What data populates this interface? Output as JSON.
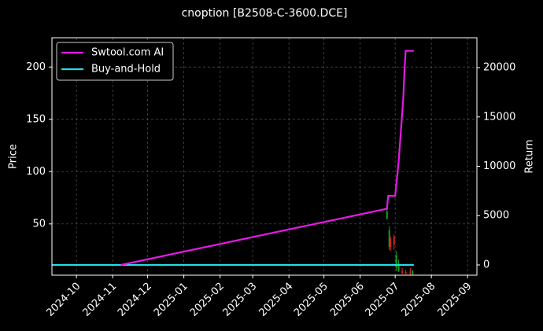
{
  "chart_data": {
    "type": "line",
    "title": "cnoption [B2508-C-3600.DCE]",
    "ylabel": "Price",
    "y2label": "Return",
    "xlim": [
      "2024-09-10",
      "2025-09-09"
    ],
    "xticks": [
      "2024-10",
      "2024-11",
      "2024-12",
      "2025-01",
      "2025-02",
      "2025-03",
      "2025-04",
      "2025-05",
      "2025-06",
      "2025-07",
      "2025-08",
      "2025-09"
    ],
    "ylim": [
      1,
      228
    ],
    "yticks": [
      50,
      100,
      150,
      200
    ],
    "y2lim": [
      -1036,
      23028
    ],
    "y2ticks": [
      0,
      5000,
      10000,
      15000,
      20000
    ],
    "grid": true,
    "legend": "upper left",
    "series": [
      {
        "name": "Swtool.com AI",
        "color": "#e619e6",
        "axis": "y2",
        "x": [
          "2024-11-08",
          "2025-06-24",
          "2025-06-25",
          "2025-07-01",
          "2025-07-04",
          "2025-07-08",
          "2025-07-09",
          "2025-07-10",
          "2025-07-17"
        ],
        "values": [
          0,
          5700,
          7000,
          7000,
          10500,
          17000,
          19800,
          21700,
          21700
        ]
      },
      {
        "name": "Buy-and-Hold",
        "color": "#22dde6",
        "axis": "y2",
        "x": [
          "2024-09-10",
          "2025-07-17"
        ],
        "values": [
          0,
          0
        ]
      }
    ],
    "candles": {
      "up_color": "#1a9e1a",
      "down_color": "#d62020",
      "x": [
        "2025-06-24",
        "2025-06-26",
        "2025-06-27",
        "2025-06-30",
        "2025-07-02",
        "2025-07-04",
        "2025-07-07",
        "2025-07-10",
        "2025-07-14",
        "2025-07-16"
      ],
      "open": [
        55,
        28,
        36,
        38,
        8,
        5,
        5,
        4,
        5,
        2
      ],
      "high": [
        65,
        48,
        38,
        40,
        24,
        16,
        8,
        6,
        8,
        6
      ],
      "low": [
        54,
        25,
        24,
        25,
        5,
        4,
        2,
        2,
        1,
        1
      ],
      "close": [
        62,
        44,
        28,
        30,
        20,
        12,
        3,
        2,
        2,
        5
      ]
    }
  }
}
